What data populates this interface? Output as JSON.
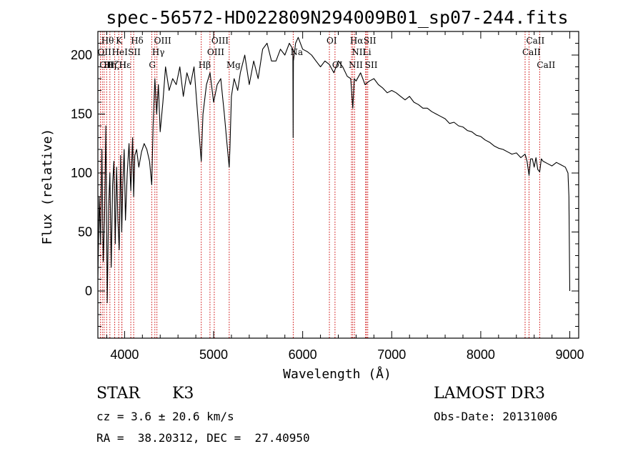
{
  "chart_data": {
    "type": "line",
    "title": "spec-56572-HD022809N294009B01_sp07-244.fits",
    "xlabel": "Wavelength (Å)",
    "ylabel": "Flux (relative)",
    "xlim": [
      3700,
      9100
    ],
    "ylim": [
      -40,
      220
    ],
    "xticks": [
      4000,
      5000,
      6000,
      7000,
      8000,
      9000
    ],
    "yticks": [
      0,
      50,
      100,
      150,
      200
    ],
    "series": [
      {
        "name": "flux",
        "x": [
          3700,
          3715,
          3730,
          3745,
          3760,
          3775,
          3790,
          3805,
          3820,
          3835,
          3850,
          3865,
          3880,
          3895,
          3910,
          3925,
          3940,
          3955,
          3968,
          3980,
          3995,
          4010,
          4030,
          4050,
          4070,
          4090,
          4102,
          4115,
          4135,
          4160,
          4190,
          4220,
          4250,
          4280,
          4305,
          4320,
          4340,
          4360,
          4380,
          4400,
          4430,
          4460,
          4500,
          4540,
          4580,
          4620,
          4660,
          4700,
          4740,
          4780,
          4820,
          4861,
          4880,
          4920,
          4960,
          5000,
          5040,
          5080,
          5120,
          5150,
          5175,
          5183,
          5200,
          5230,
          5270,
          5300,
          5350,
          5400,
          5450,
          5500,
          5550,
          5600,
          5650,
          5700,
          5750,
          5800,
          5850,
          5890,
          5893,
          5896,
          5920,
          5950,
          6000,
          6050,
          6100,
          6150,
          6200,
          6250,
          6300,
          6350,
          6400,
          6450,
          6500,
          6540,
          6563,
          6580,
          6600,
          6650,
          6700,
          6750,
          6800,
          6850,
          6900,
          6950,
          7000,
          7050,
          7100,
          7150,
          7200,
          7250,
          7300,
          7350,
          7400,
          7450,
          7500,
          7550,
          7600,
          7650,
          7700,
          7750,
          7800,
          7850,
          7900,
          7950,
          8000,
          8050,
          8100,
          8150,
          8200,
          8250,
          8300,
          8350,
          8400,
          8450,
          8498,
          8520,
          8542,
          8560,
          8580,
          8600,
          8620,
          8640,
          8662,
          8680,
          8700,
          8750,
          8800,
          8850,
          8900,
          8950,
          8980,
          8990,
          9000
        ],
        "y": [
          10,
          80,
          40,
          120,
          25,
          60,
          140,
          -10,
          70,
          100,
          20,
          90,
          110,
          40,
          105,
          60,
          35,
          115,
          50,
          90,
          120,
          60,
          100,
          125,
          85,
          130,
          80,
          115,
          120,
          105,
          118,
          125,
          120,
          110,
          90,
          140,
          180,
          150,
          175,
          135,
          160,
          190,
          170,
          180,
          175,
          190,
          165,
          185,
          175,
          190,
          150,
          110,
          150,
          175,
          185,
          160,
          175,
          180,
          150,
          125,
          105,
          120,
          165,
          180,
          170,
          185,
          200,
          175,
          195,
          180,
          205,
          210,
          195,
          195,
          205,
          200,
          210,
          205,
          130,
          195,
          210,
          215,
          205,
          203,
          200,
          195,
          190,
          195,
          192,
          185,
          195,
          190,
          182,
          180,
          155,
          180,
          178,
          185,
          175,
          178,
          180,
          175,
          172,
          168,
          170,
          168,
          165,
          162,
          165,
          160,
          158,
          155,
          155,
          152,
          150,
          148,
          146,
          142,
          143,
          140,
          139,
          136,
          135,
          132,
          131,
          128,
          126,
          123,
          121,
          120,
          118,
          116,
          117,
          113,
          116,
          110,
          98,
          112,
          112,
          105,
          113,
          103,
          101,
          112,
          110,
          108,
          106,
          109,
          107,
          105,
          100,
          80,
          0
        ]
      }
    ],
    "emission_lines": [
      {
        "wavelength": 3728,
        "label": "OII",
        "row": 1
      },
      {
        "wavelength": 3750,
        "label": "OII",
        "row": 2
      },
      {
        "wavelength": 3770,
        "label": "Hθ",
        "row": 0
      },
      {
        "wavelength": 3798,
        "label": "Hη",
        "row": 2
      },
      {
        "wavelength": 3835,
        "label": "Hζ",
        "row": 2
      },
      {
        "wavelength": 3889,
        "label": "HeI",
        "row": 1
      },
      {
        "wavelength": 3934,
        "label": "K",
        "row": 0
      },
      {
        "wavelength": 3969,
        "label": "H",
        "row": 2
      },
      {
        "wavelength": 3970,
        "label": "Hε",
        "row": 2
      },
      {
        "wavelength": 4070,
        "label": "SII",
        "row": 1
      },
      {
        "wavelength": 4102,
        "label": "Hδ",
        "row": 0
      },
      {
        "wavelength": 4305,
        "label": "G",
        "row": 2
      },
      {
        "wavelength": 4340,
        "label": "Hγ",
        "row": 1
      },
      {
        "wavelength": 4363,
        "label": "OIII",
        "row": 0
      },
      {
        "wavelength": 4861,
        "label": "Hβ",
        "row": 2
      },
      {
        "wavelength": 4959,
        "label": "OIII",
        "row": 1
      },
      {
        "wavelength": 5007,
        "label": "OIII",
        "row": 0
      },
      {
        "wavelength": 5175,
        "label": "Mg",
        "row": 2
      },
      {
        "wavelength": 5894,
        "label": "Na",
        "row": 1
      },
      {
        "wavelength": 6300,
        "label": "OI",
        "row": 0
      },
      {
        "wavelength": 6363,
        "label": "OI",
        "row": 2
      },
      {
        "wavelength": 6548,
        "label": "NII",
        "row": 2
      },
      {
        "wavelength": 6563,
        "label": "Hα",
        "row": 0
      },
      {
        "wavelength": 6583,
        "label": "NII",
        "row": 1
      },
      {
        "wavelength": 6707,
        "label": "Li",
        "row": 1
      },
      {
        "wavelength": 6716,
        "label": "SII",
        "row": 0
      },
      {
        "wavelength": 6731,
        "label": "SII",
        "row": 2
      },
      {
        "wavelength": 8498,
        "label": "CaII",
        "row": 1
      },
      {
        "wavelength": 8542,
        "label": "CaII",
        "row": 0
      },
      {
        "wavelength": 8662,
        "label": "CaII",
        "row": 2
      }
    ]
  },
  "info": {
    "object_type": "STAR",
    "subclass": "K3",
    "redshift": "cz = 3.6 ± 20.6 km/s",
    "coords": "RA =  38.20312, DEC =  27.40950",
    "survey": "LAMOST DR3",
    "obs_date": "Obs-Date: 20131006"
  },
  "colors": {
    "line": "#000000",
    "marker": "#cc0000",
    "background": "#ffffff"
  }
}
